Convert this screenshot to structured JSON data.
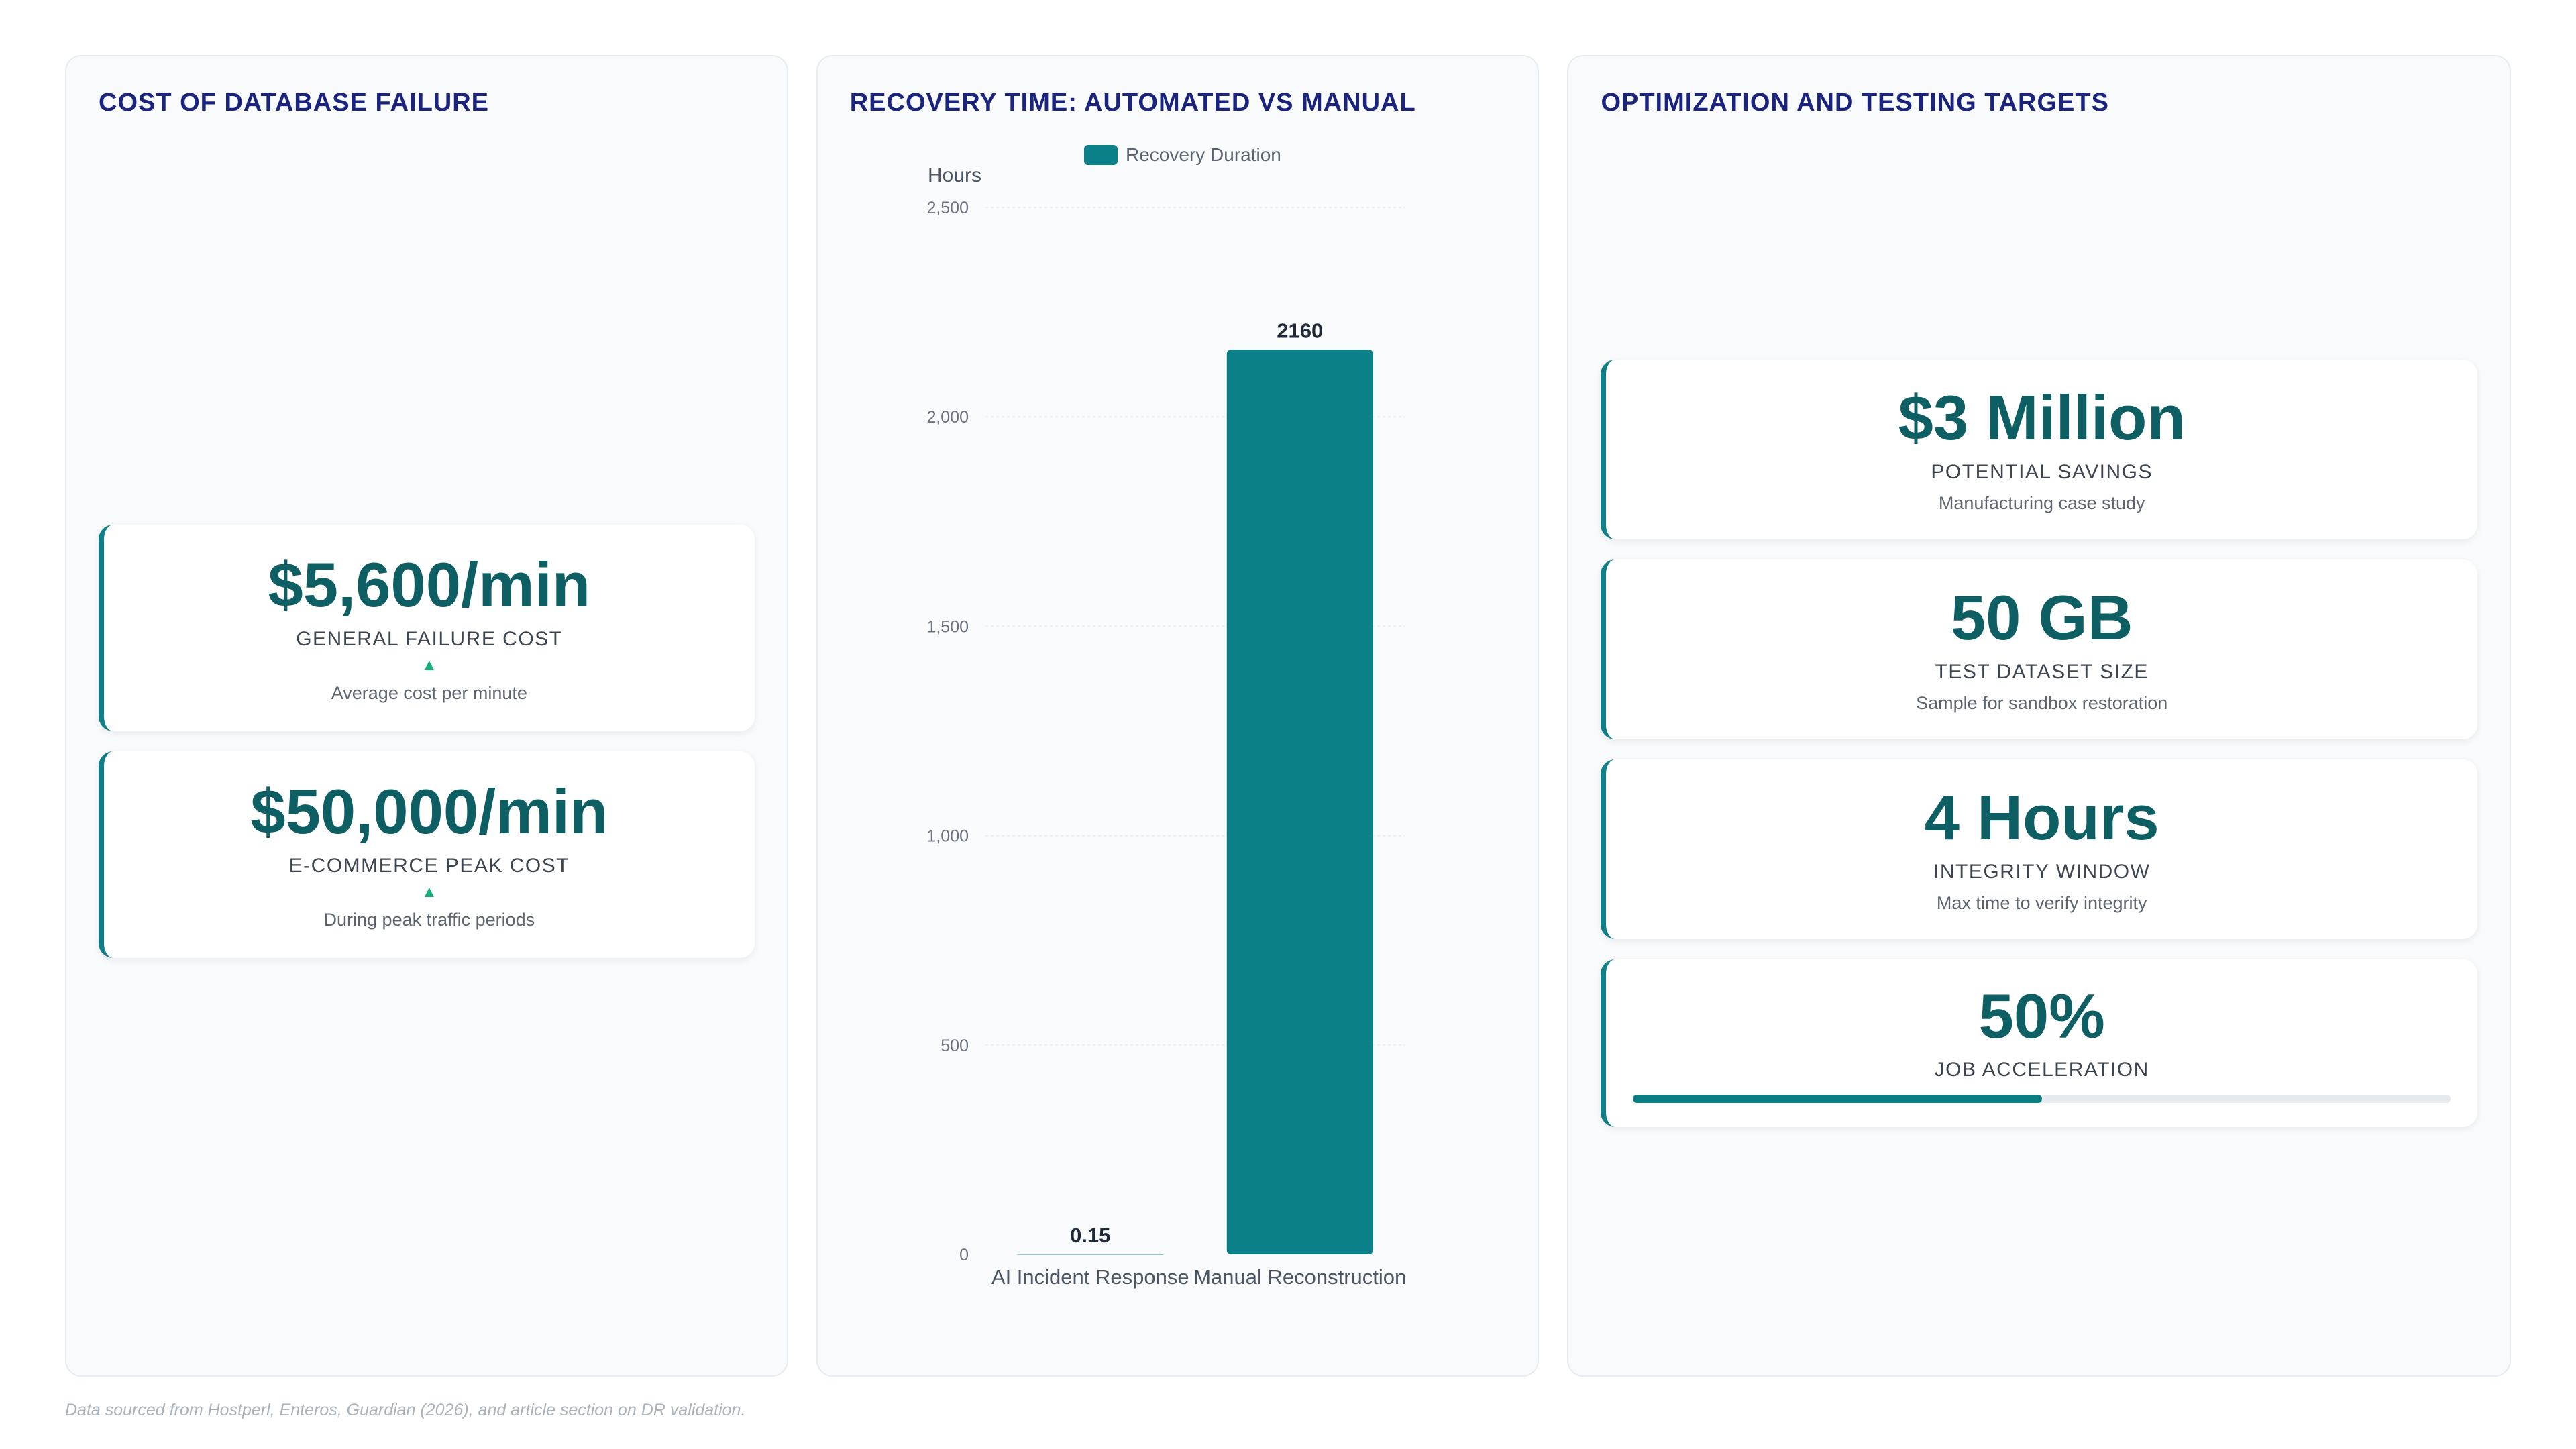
{
  "panels": {
    "cost": {
      "title": "COST OF DATABASE FAILURE",
      "cards": [
        {
          "value": "$5,600/min",
          "label": "GENERAL FAILURE COST",
          "arrow": "▲",
          "sub": "Average cost per minute"
        },
        {
          "value": "$50,000/min",
          "label": "E-COMMERCE PEAK COST",
          "arrow": "▲",
          "sub": "During peak traffic periods"
        }
      ]
    },
    "recovery": {
      "title": "RECOVERY TIME: AUTOMATED VS MANUAL"
    },
    "targets": {
      "title": "OPTIMIZATION AND TESTING TARGETS",
      "cards": [
        {
          "value": "$3 Million",
          "label": "POTENTIAL SAVINGS",
          "sub": "Manufacturing case study"
        },
        {
          "value": "50 GB",
          "label": "TEST DATASET SIZE",
          "sub": "Sample for sandbox restoration"
        },
        {
          "value": "4 Hours",
          "label": "INTEGRITY WINDOW",
          "sub": "Max time to verify integrity"
        },
        {
          "value": "50%",
          "label": "JOB ACCELERATION",
          "progress": 0.5
        }
      ]
    }
  },
  "chart_data": {
    "type": "bar",
    "categories": [
      "AI Incident Response",
      "Manual Reconstruction"
    ],
    "series": [
      {
        "name": "Recovery Duration",
        "values": [
          0.15,
          2160
        ],
        "color": "#0b8088"
      }
    ],
    "data_labels": [
      "0.15",
      "2160"
    ],
    "ylabel": "Hours",
    "xlabel": "",
    "ylim": [
      0,
      2500
    ],
    "yticks": [
      0,
      500,
      1000,
      1500,
      2000,
      2500
    ],
    "ytick_labels": [
      "0",
      "500",
      "1,000",
      "1,500",
      "2,000",
      "2,500"
    ],
    "grid": true,
    "legend": "top"
  },
  "footer": "Data sourced from Hostperl, Enteros, Guardian (2026), and article section on DR validation."
}
